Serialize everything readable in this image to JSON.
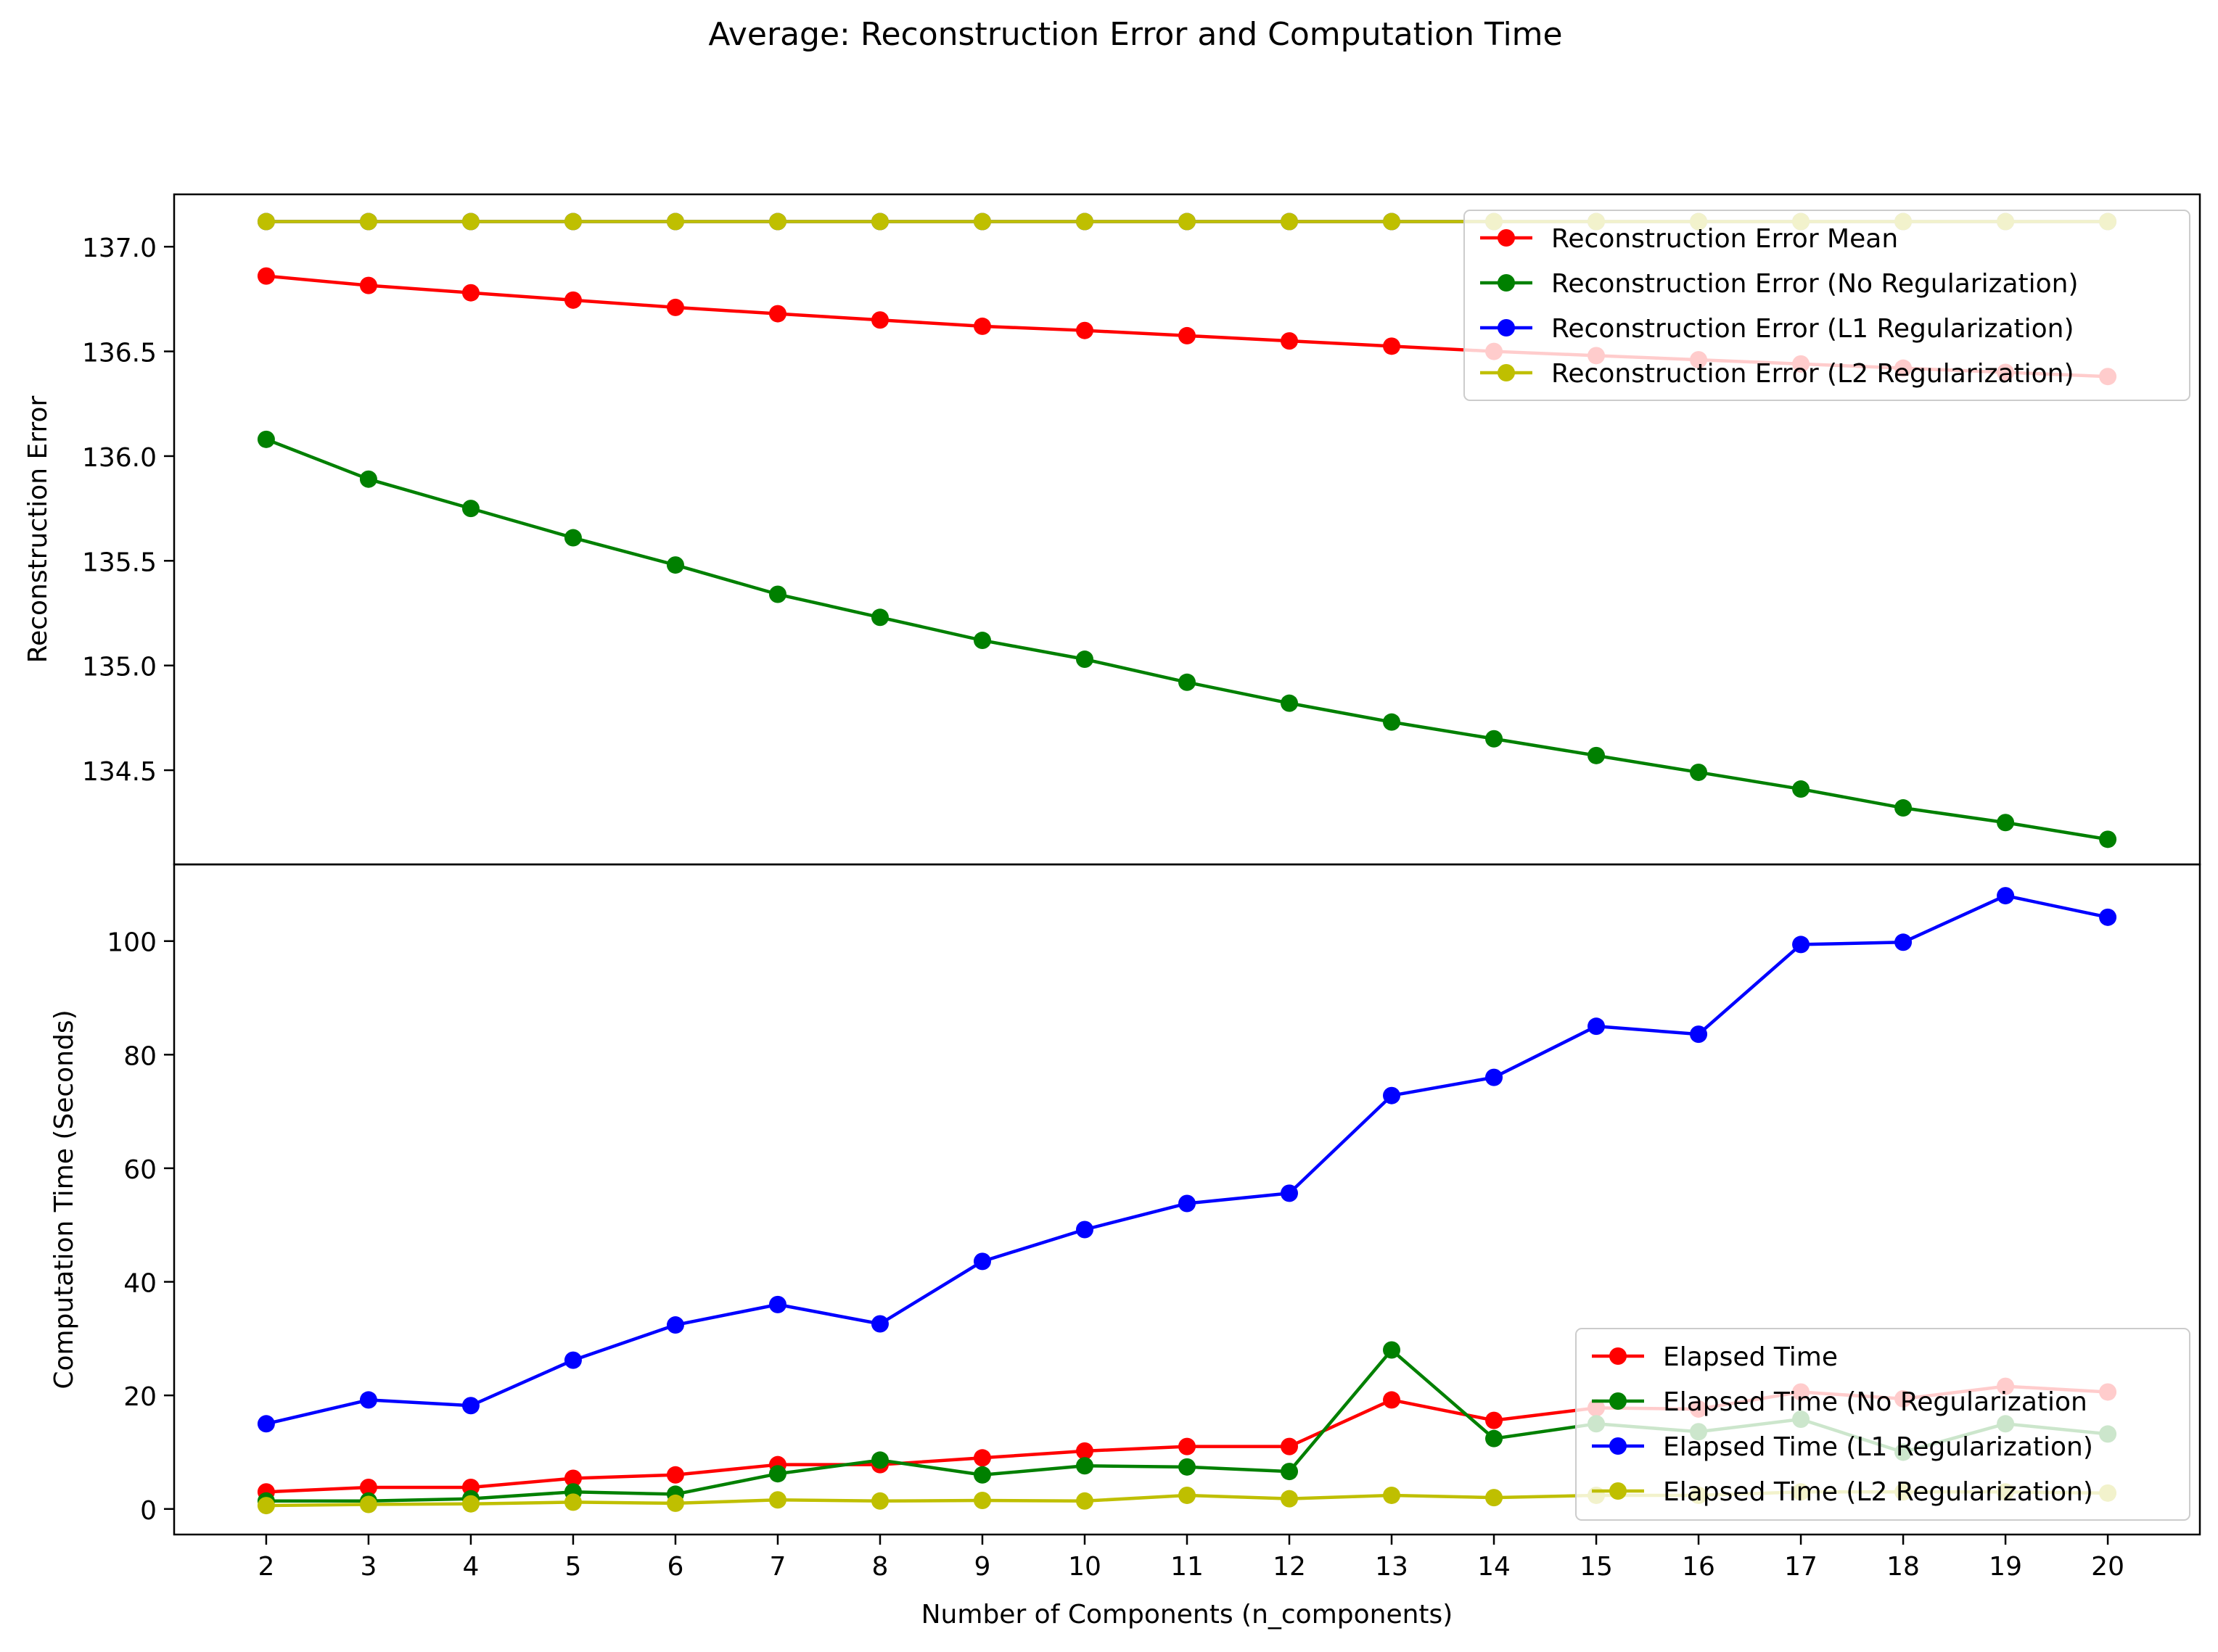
{
  "figure": {
    "title": "Average: Reconstruction Error and Computation Time"
  },
  "chart_data": [
    {
      "type": "line",
      "panel": "top",
      "ylabel": "Reconstruction Error",
      "xlabel": "",
      "ylim": [
        134.05,
        137.25
      ],
      "yticks": [
        134.5,
        135.0,
        135.5,
        136.0,
        136.5,
        137.0
      ],
      "ytick_labels": [
        "134.5",
        "135.0",
        "135.5",
        "136.0",
        "136.5",
        "137.0"
      ],
      "legend_position": "upper-right",
      "x": [
        2,
        3,
        4,
        5,
        6,
        7,
        8,
        9,
        10,
        11,
        12,
        13,
        14,
        15,
        16,
        17,
        18,
        19,
        20
      ],
      "series": [
        {
          "name": "Reconstruction Error Mean",
          "color": "#ff0000",
          "values": [
            136.86,
            136.815,
            136.78,
            136.745,
            136.71,
            136.68,
            136.65,
            136.62,
            136.6,
            136.575,
            136.55,
            136.525,
            136.5,
            136.48,
            136.46,
            136.44,
            136.42,
            136.4,
            136.38
          ]
        },
        {
          "name": "Reconstruction Error (No Regularization)",
          "color": "#008000",
          "values": [
            136.08,
            135.89,
            135.75,
            135.61,
            135.48,
            135.34,
            135.23,
            135.12,
            135.03,
            134.92,
            134.82,
            134.73,
            134.65,
            134.57,
            134.49,
            134.41,
            134.32,
            134.25,
            134.17
          ]
        },
        {
          "name": "Reconstruction Error (L1 Regularization)",
          "color": "#0000ff",
          "values": [
            137.12,
            137.12,
            137.12,
            137.12,
            137.12,
            137.12,
            137.12,
            137.12,
            137.12,
            137.12,
            137.12,
            137.12,
            137.12,
            137.12,
            137.12,
            137.12,
            137.12,
            137.12,
            137.12
          ]
        },
        {
          "name": "Reconstruction Error (L2 Regularization)",
          "color": "#bfbf00",
          "values": [
            137.12,
            137.12,
            137.12,
            137.12,
            137.12,
            137.12,
            137.12,
            137.12,
            137.12,
            137.12,
            137.12,
            137.12,
            137.12,
            137.12,
            137.12,
            137.12,
            137.12,
            137.12,
            137.12
          ]
        }
      ]
    },
    {
      "type": "line",
      "panel": "bottom",
      "ylabel": "Computation Time (Seconds)",
      "xlabel": "Number of Components (n_components)",
      "ylim": [
        -4.5,
        113.5
      ],
      "yticks": [
        0,
        20,
        40,
        60,
        80,
        100
      ],
      "ytick_labels": [
        "0",
        "20",
        "40",
        "60",
        "80",
        "100"
      ],
      "xticks": [
        2,
        3,
        4,
        5,
        6,
        7,
        8,
        9,
        10,
        11,
        12,
        13,
        14,
        15,
        16,
        17,
        18,
        19,
        20
      ],
      "xtick_labels": [
        "2",
        "3",
        "4",
        "5",
        "6",
        "7",
        "8",
        "9",
        "10",
        "11",
        "12",
        "13",
        "14",
        "15",
        "16",
        "17",
        "18",
        "19",
        "20"
      ],
      "xlim": [
        1.1,
        20.9
      ],
      "legend_position": "lower-right",
      "x": [
        2,
        3,
        4,
        5,
        6,
        7,
        8,
        9,
        10,
        11,
        12,
        13,
        14,
        15,
        16,
        17,
        18,
        19,
        20
      ],
      "series": [
        {
          "name": "Elapsed Time",
          "color": "#ff0000",
          "values": [
            3.0,
            3.8,
            3.8,
            5.4,
            6.0,
            7.8,
            7.8,
            9.0,
            10.2,
            11.0,
            11.0,
            19.2,
            15.6,
            17.8,
            17.6,
            20.6,
            19.4,
            21.6,
            20.6
          ]
        },
        {
          "name": "Elapsed Time (No Regularization",
          "color": "#008000",
          "values": [
            1.4,
            1.4,
            1.8,
            3.0,
            2.6,
            6.2,
            8.6,
            6.0,
            7.6,
            7.4,
            6.6,
            28.0,
            12.4,
            15.0,
            13.6,
            15.8,
            10.0,
            15.0,
            13.2
          ]
        },
        {
          "name": "Elapsed Time (L1 Regularization)",
          "color": "#0000ff",
          "values": [
            15.0,
            19.2,
            18.2,
            26.2,
            32.4,
            36.0,
            32.6,
            43.6,
            49.2,
            53.8,
            55.6,
            72.8,
            76.0,
            85.0,
            83.6,
            99.4,
            99.8,
            108.0,
            104.2
          ]
        },
        {
          "name": "Elapsed Time (L2 Regularization)",
          "color": "#bfbf00",
          "values": [
            0.6,
            0.8,
            0.9,
            1.2,
            1.0,
            1.6,
            1.4,
            1.5,
            1.4,
            2.4,
            1.8,
            2.4,
            2.0,
            2.4,
            2.4,
            3.0,
            3.0,
            3.0,
            2.8
          ]
        }
      ]
    }
  ]
}
